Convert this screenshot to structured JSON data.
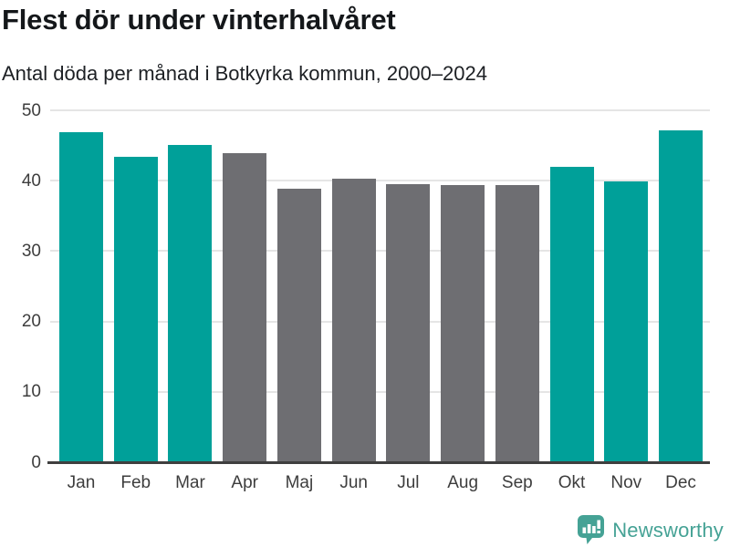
{
  "title": "Flest dör under vinterhalvåret",
  "subtitle": "Antal döda per månad i Botkyrka kommun, 2000–2024",
  "footer": {
    "brand": "Newsworthy",
    "logo_icon": "bar-chart-speech-bubble-icon"
  },
  "colors": {
    "highlight": "#00a099",
    "muted": "#6e6e72",
    "grid": "#e5e5e5",
    "axis": "#3f3f3f",
    "tick_text": "#3d3d3d",
    "brand": "#45a295"
  },
  "chart_data": {
    "type": "bar",
    "title": "Flest dör under vinterhalvåret",
    "subtitle": "Antal döda per månad i Botkyrka kommun, 2000–2024",
    "categories": [
      "Jan",
      "Feb",
      "Mar",
      "Apr",
      "Maj",
      "Jun",
      "Jul",
      "Aug",
      "Sep",
      "Okt",
      "Nov",
      "Dec"
    ],
    "values": [
      46.9,
      43.4,
      45.1,
      43.9,
      38.8,
      40.3,
      39.5,
      39.4,
      39.4,
      42.0,
      39.9,
      47.2
    ],
    "bar_color_roles": [
      "highlight",
      "highlight",
      "highlight",
      "muted",
      "muted",
      "muted",
      "muted",
      "muted",
      "muted",
      "highlight",
      "highlight",
      "highlight"
    ],
    "highlighted_categories": [
      "Jan",
      "Feb",
      "Mar",
      "Okt",
      "Nov",
      "Dec"
    ],
    "xlabel": "",
    "ylabel": "",
    "ylim": [
      0,
      50
    ],
    "yticks": [
      0,
      10,
      20,
      30,
      40,
      50
    ],
    "grid": "horizontal",
    "legend": "none"
  }
}
